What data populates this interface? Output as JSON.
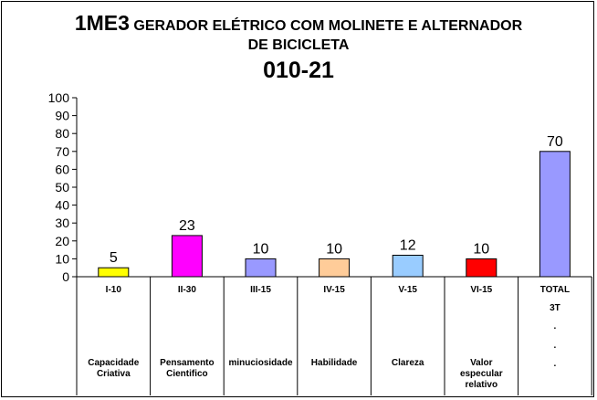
{
  "title": {
    "main": "1ME3",
    "rest": "GERADOR ELÉTRICO COM MOLINETE E ALTERNADOR",
    "line2": "DE BICICLETA",
    "line3": "010-21"
  },
  "chart_data": {
    "type": "bar",
    "ylim": [
      0,
      100
    ],
    "yticks": [
      0,
      10,
      20,
      30,
      40,
      50,
      60,
      70,
      80,
      90,
      100
    ],
    "grid": false,
    "categories": [
      "I-10",
      "II-30",
      "III-15",
      "IV-15",
      "V-15",
      "VI-15",
      "TOTAL"
    ],
    "values": [
      5,
      23,
      10,
      10,
      12,
      10,
      70
    ],
    "colors": [
      "#ffff00",
      "#ff00ff",
      "#9999ff",
      "#ffcc99",
      "#99ccff",
      "#ff0000",
      "#9999ff"
    ],
    "descriptions": [
      [
        "Capacidade",
        "Criativa"
      ],
      [
        "Pensamento",
        "Cientifico"
      ],
      [
        "minuciosidade"
      ],
      [
        "Habilidade"
      ],
      [
        "Clareza"
      ],
      [
        "Valor",
        "especular",
        "relativo"
      ],
      []
    ],
    "total_extra": [
      "3T",
      ".",
      ".",
      "."
    ]
  }
}
